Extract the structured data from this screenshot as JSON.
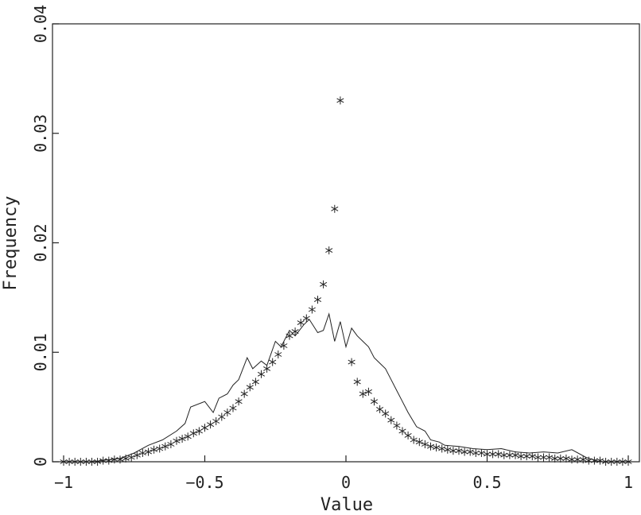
{
  "chart_data": {
    "type": "line",
    "title": "",
    "xlabel": "Value",
    "ylabel": "Frequency",
    "xlim": [
      -1,
      1
    ],
    "ylim": [
      0,
      0.04
    ],
    "x_ticks": [
      -1,
      -0.5,
      0,
      0.5,
      1
    ],
    "x_tick_labels": [
      "−1",
      "−0.5",
      "0",
      "0.5",
      "1"
    ],
    "y_ticks": [
      0,
      0.01,
      0.02,
      0.03,
      0.04
    ],
    "y_tick_labels": [
      "0",
      "0.01",
      "0.02",
      "0.03",
      "0.04"
    ],
    "grid": false,
    "legend": "none",
    "series": [
      {
        "style": "line",
        "color": "#222222",
        "x": [
          -1.0,
          -0.9,
          -0.8,
          -0.75,
          -0.7,
          -0.65,
          -0.6,
          -0.57,
          -0.55,
          -0.5,
          -0.47,
          -0.45,
          -0.42,
          -0.4,
          -0.38,
          -0.35,
          -0.33,
          -0.3,
          -0.28,
          -0.25,
          -0.23,
          -0.2,
          -0.18,
          -0.15,
          -0.13,
          -0.1,
          -0.08,
          -0.06,
          -0.04,
          -0.02,
          0.0,
          0.02,
          0.04,
          0.06,
          0.08,
          0.1,
          0.12,
          0.14,
          0.16,
          0.18,
          0.2,
          0.22,
          0.25,
          0.28,
          0.3,
          0.33,
          0.35,
          0.4,
          0.45,
          0.5,
          0.55,
          0.6,
          0.65,
          0.7,
          0.75,
          0.8,
          0.85,
          0.9,
          1.0
        ],
        "y": [
          0.0,
          0.0,
          0.0003,
          0.0008,
          0.0015,
          0.002,
          0.0028,
          0.0035,
          0.005,
          0.0055,
          0.0045,
          0.0058,
          0.0062,
          0.007,
          0.0075,
          0.0095,
          0.0085,
          0.0092,
          0.0088,
          0.011,
          0.0105,
          0.012,
          0.0115,
          0.0125,
          0.013,
          0.0118,
          0.012,
          0.0135,
          0.011,
          0.0128,
          0.0105,
          0.0122,
          0.0115,
          0.011,
          0.0105,
          0.0095,
          0.009,
          0.0085,
          0.0075,
          0.0065,
          0.0055,
          0.0045,
          0.0032,
          0.0028,
          0.002,
          0.0018,
          0.0015,
          0.0014,
          0.0012,
          0.0011,
          0.0012,
          0.0009,
          0.0008,
          0.0009,
          0.0008,
          0.0011,
          0.0004,
          0.0,
          0.0
        ]
      },
      {
        "style": "marker",
        "marker": "asterisk",
        "color": "#222222",
        "x": [
          -1.0,
          -0.98,
          -0.96,
          -0.94,
          -0.92,
          -0.9,
          -0.88,
          -0.86,
          -0.84,
          -0.82,
          -0.8,
          -0.78,
          -0.76,
          -0.74,
          -0.72,
          -0.7,
          -0.68,
          -0.66,
          -0.64,
          -0.62,
          -0.6,
          -0.58,
          -0.56,
          -0.54,
          -0.52,
          -0.5,
          -0.48,
          -0.46,
          -0.44,
          -0.42,
          -0.4,
          -0.38,
          -0.36,
          -0.34,
          -0.32,
          -0.3,
          -0.28,
          -0.26,
          -0.24,
          -0.22,
          -0.2,
          -0.18,
          -0.16,
          -0.14,
          -0.12,
          -0.1,
          -0.08,
          -0.06,
          -0.04,
          -0.02,
          0.02,
          0.04,
          0.06,
          0.08,
          0.1,
          0.12,
          0.14,
          0.16,
          0.18,
          0.2,
          0.22,
          0.24,
          0.26,
          0.28,
          0.3,
          0.32,
          0.34,
          0.36,
          0.38,
          0.4,
          0.42,
          0.44,
          0.46,
          0.48,
          0.5,
          0.52,
          0.54,
          0.56,
          0.58,
          0.6,
          0.62,
          0.64,
          0.66,
          0.68,
          0.7,
          0.72,
          0.74,
          0.76,
          0.78,
          0.8,
          0.82,
          0.84,
          0.86,
          0.88,
          0.9,
          0.92,
          0.94,
          0.96,
          0.98,
          1.0
        ],
        "y": [
          0.0,
          0.0,
          0.0,
          0.0,
          0.0,
          0.0,
          0.0,
          0.0001,
          0.0001,
          0.0002,
          0.0002,
          0.0003,
          0.0004,
          0.0006,
          0.0008,
          0.0009,
          0.0011,
          0.0012,
          0.0014,
          0.0016,
          0.0019,
          0.0021,
          0.0023,
          0.0026,
          0.0028,
          0.0031,
          0.0034,
          0.0037,
          0.0041,
          0.0045,
          0.0049,
          0.0055,
          0.0062,
          0.0068,
          0.0073,
          0.008,
          0.0085,
          0.0091,
          0.0098,
          0.0106,
          0.0115,
          0.0119,
          0.0127,
          0.0131,
          0.0139,
          0.0148,
          0.0162,
          0.0193,
          0.0231,
          0.033,
          0.0091,
          0.0073,
          0.0062,
          0.0064,
          0.0055,
          0.0048,
          0.0044,
          0.0038,
          0.0033,
          0.0028,
          0.0024,
          0.002,
          0.0018,
          0.0016,
          0.0014,
          0.0013,
          0.0012,
          0.0011,
          0.001,
          0.001,
          0.0009,
          0.0009,
          0.0008,
          0.0008,
          0.0007,
          0.0007,
          0.0007,
          0.0006,
          0.0006,
          0.0006,
          0.0005,
          0.0005,
          0.0005,
          0.0004,
          0.0004,
          0.0004,
          0.0003,
          0.0003,
          0.0003,
          0.0002,
          0.0002,
          0.0002,
          0.0001,
          0.0001,
          0.0001,
          0.0,
          0.0,
          0.0,
          0.0,
          0.0
        ]
      }
    ]
  }
}
